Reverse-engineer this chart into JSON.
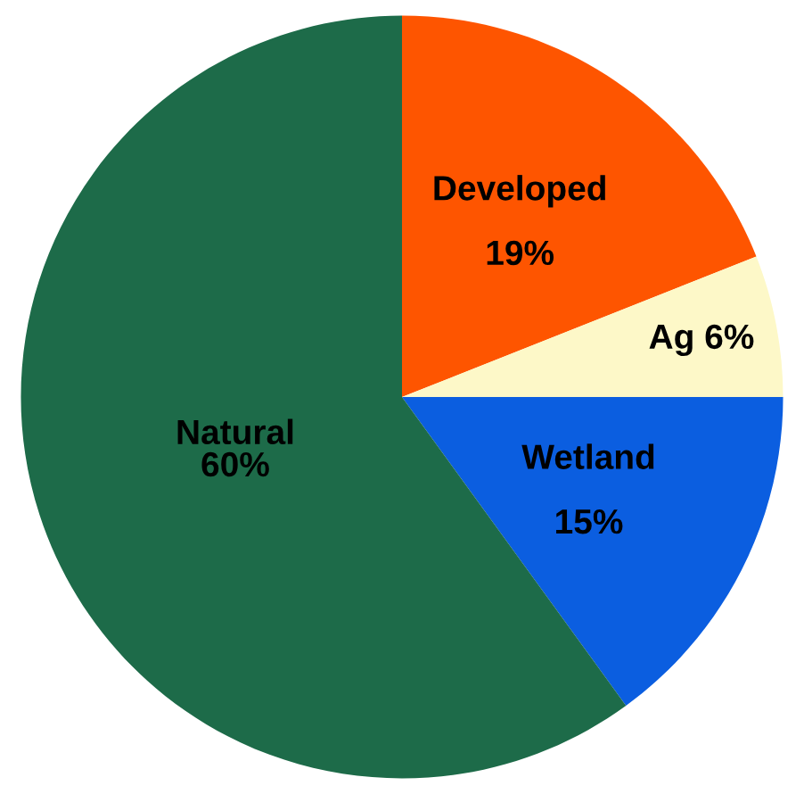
{
  "chart_data": {
    "type": "pie",
    "categories": [
      "Developed",
      "Ag",
      "Wetland",
      "Natural"
    ],
    "values": [
      19,
      6,
      15,
      60
    ],
    "value_labels": [
      "19%",
      "6%",
      "15%",
      "60%"
    ],
    "colors": [
      "#fe5500",
      "#fdf8c8",
      "#0b5ee0",
      "#1d6b49"
    ],
    "legend": false
  }
}
